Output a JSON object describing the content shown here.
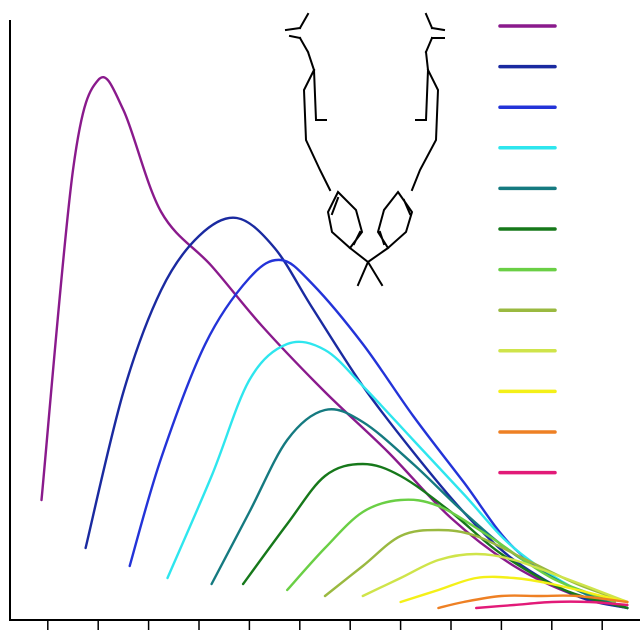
{
  "chart_data": {
    "type": "line",
    "title": "",
    "xlabel": "",
    "ylabel": "",
    "xlim": [
      0,
      100
    ],
    "ylim": [
      0,
      100
    ],
    "grid": false,
    "legend_position": "top-right",
    "x_ticks": [
      6,
      14,
      22,
      30,
      38,
      46,
      54,
      62,
      70,
      78,
      86,
      94
    ],
    "series": [
      {
        "color": "#8a1a8c",
        "values": [
          [
            5,
            20
          ],
          [
            10,
            75
          ],
          [
            14,
            90
          ],
          [
            18,
            85
          ],
          [
            24,
            68
          ],
          [
            32,
            59
          ],
          [
            40,
            49
          ],
          [
            50,
            38
          ],
          [
            60,
            28
          ],
          [
            70,
            17
          ],
          [
            80,
            9
          ],
          [
            90,
            4
          ],
          [
            98,
            2
          ]
        ]
      },
      {
        "color": "#1a2aa0",
        "values": [
          [
            12,
            12
          ],
          [
            18,
            38
          ],
          [
            24,
            55
          ],
          [
            30,
            64
          ],
          [
            36,
            67
          ],
          [
            42,
            62
          ],
          [
            48,
            52
          ],
          [
            56,
            39
          ],
          [
            64,
            28
          ],
          [
            72,
            18
          ],
          [
            80,
            10
          ],
          [
            90,
            4
          ],
          [
            98,
            2
          ]
        ]
      },
      {
        "color": "#2333d8",
        "values": [
          [
            19,
            9
          ],
          [
            24,
            27
          ],
          [
            31,
            46
          ],
          [
            38,
            57
          ],
          [
            43,
            60
          ],
          [
            48,
            56
          ],
          [
            56,
            46
          ],
          [
            64,
            34
          ],
          [
            72,
            23
          ],
          [
            80,
            12
          ],
          [
            90,
            5
          ],
          [
            98,
            2
          ]
        ]
      },
      {
        "color": "#2ee6ee",
        "values": [
          [
            25,
            7
          ],
          [
            32,
            24
          ],
          [
            38,
            40
          ],
          [
            44,
            46
          ],
          [
            50,
            45
          ],
          [
            56,
            39
          ],
          [
            64,
            30
          ],
          [
            72,
            21
          ],
          [
            80,
            12
          ],
          [
            90,
            5
          ],
          [
            98,
            2
          ]
        ]
      },
      {
        "color": "#157a80",
        "values": [
          [
            32,
            6
          ],
          [
            38,
            18
          ],
          [
            44,
            30
          ],
          [
            50,
            35
          ],
          [
            56,
            33
          ],
          [
            64,
            26
          ],
          [
            72,
            18
          ],
          [
            80,
            11
          ],
          [
            90,
            5
          ],
          [
            98,
            2
          ]
        ]
      },
      {
        "color": "#16781a",
        "values": [
          [
            37,
            6
          ],
          [
            44,
            16
          ],
          [
            50,
            24
          ],
          [
            56,
            26
          ],
          [
            62,
            24
          ],
          [
            70,
            18
          ],
          [
            78,
            11
          ],
          [
            88,
            5
          ],
          [
            98,
            2
          ]
        ]
      },
      {
        "color": "#6acf45",
        "values": [
          [
            44,
            5
          ],
          [
            50,
            12
          ],
          [
            56,
            18
          ],
          [
            62,
            20
          ],
          [
            68,
            19
          ],
          [
            76,
            14
          ],
          [
            86,
            7
          ],
          [
            96,
            3
          ]
        ]
      },
      {
        "color": "#9ab940",
        "values": [
          [
            50,
            4
          ],
          [
            56,
            9
          ],
          [
            62,
            14
          ],
          [
            68,
            15
          ],
          [
            74,
            14
          ],
          [
            82,
            10
          ],
          [
            90,
            6
          ],
          [
            98,
            3
          ]
        ]
      },
      {
        "color": "#cfe44a",
        "values": [
          [
            56,
            4
          ],
          [
            62,
            7
          ],
          [
            68,
            10
          ],
          [
            74,
            11
          ],
          [
            80,
            10
          ],
          [
            88,
            7
          ],
          [
            98,
            3
          ]
        ]
      },
      {
        "color": "#f4f018",
        "values": [
          [
            62,
            3
          ],
          [
            68,
            5
          ],
          [
            74,
            7
          ],
          [
            80,
            7
          ],
          [
            86,
            6
          ],
          [
            94,
            4
          ],
          [
            98,
            3
          ]
        ]
      },
      {
        "color": "#ee8024",
        "values": [
          [
            68,
            2
          ],
          [
            72,
            3
          ],
          [
            78,
            4
          ],
          [
            84,
            4
          ],
          [
            90,
            4
          ],
          [
            98,
            3
          ]
        ]
      },
      {
        "color": "#e21a78",
        "values": [
          [
            74,
            2
          ],
          [
            80,
            2.5
          ],
          [
            86,
            3
          ],
          [
            92,
            3
          ],
          [
            98,
            2.5
          ]
        ]
      }
    ]
  }
}
